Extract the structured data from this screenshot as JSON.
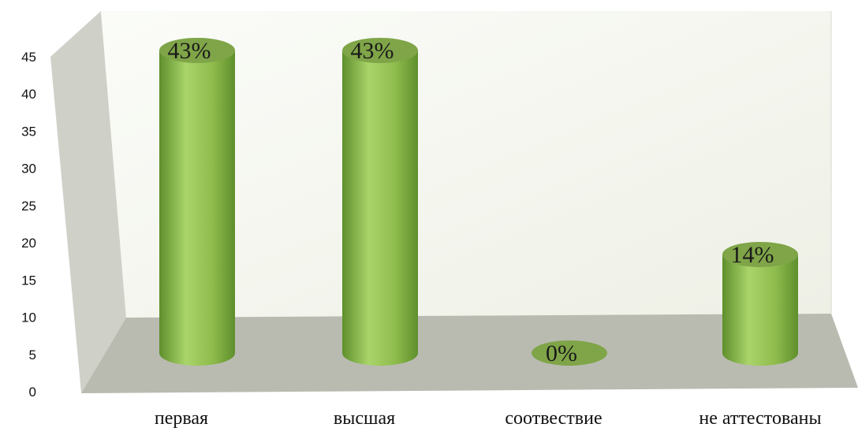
{
  "chart_data": {
    "type": "bar",
    "style": "3d-cylinder",
    "categories": [
      "первая",
      "высшая",
      "соотвествие",
      "не аттестованы"
    ],
    "values": [
      43,
      43,
      0,
      14
    ],
    "data_labels": [
      "43%",
      "43%",
      "0%",
      "14%"
    ],
    "title": "",
    "xlabel": "",
    "ylabel": "",
    "ylim": [
      0,
      45
    ],
    "yticks": [
      0,
      5,
      10,
      15,
      20,
      25,
      30,
      35,
      40,
      45
    ],
    "grid": false,
    "legend": "none",
    "colors": {
      "bar_light": "#a9d46a",
      "bar_mid": "#8fbc4d",
      "bar_dark": "#5f8f2c",
      "bar_top": "#7fa548",
      "floor": "#b9bbb1",
      "back_wall": "#f6f7f1",
      "side_wall": "#cfd1c9"
    }
  }
}
